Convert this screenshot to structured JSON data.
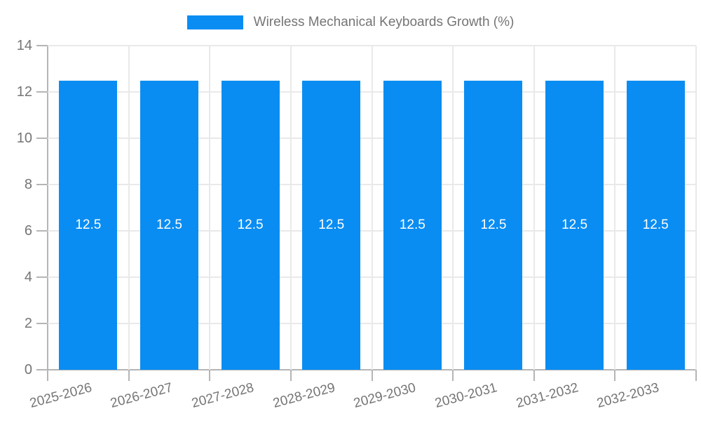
{
  "legend": {
    "label": "Wireless Mechanical Keyboards Growth (%)",
    "swatch_color": "#0a8df2"
  },
  "chart_data": {
    "type": "bar",
    "title": "Wireless Mechanical Keyboards Growth (%)",
    "categories": [
      "2025-2026",
      "2026-2027",
      "2027-2028",
      "2028-2029",
      "2029-2030",
      "2030-2031",
      "2031-2032",
      "2032-2033"
    ],
    "values": [
      12.5,
      12.5,
      12.5,
      12.5,
      12.5,
      12.5,
      12.5,
      12.5
    ],
    "bar_labels": [
      "12.5",
      "12.5",
      "12.5",
      "12.5",
      "12.5",
      "12.5",
      "12.5",
      "12.5"
    ],
    "xlabel": "",
    "ylabel": "",
    "ylim": [
      0,
      14
    ],
    "yticks": [
      0,
      2,
      4,
      6,
      8,
      10,
      12,
      14
    ],
    "grid": true,
    "legend_position": "top",
    "colors": {
      "bar": "#0a8df2",
      "bar_value_text": "#ffffff",
      "axis_text": "#757575",
      "gridline": "#e9e9e9",
      "axis_line": "#b5b5b5"
    }
  }
}
